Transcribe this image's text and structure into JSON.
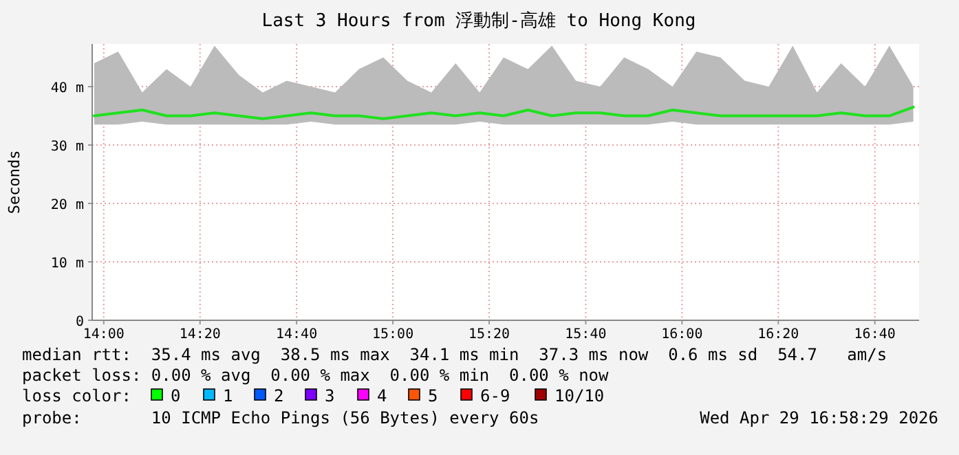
{
  "chart_data": {
    "type": "line",
    "title": "Last 3 Hours from 浮動制-高雄 to Hong Kong",
    "ylabel": "Seconds",
    "x": [
      13.967,
      14.05,
      14.133,
      14.217,
      14.3,
      14.383,
      14.467,
      14.55,
      14.633,
      14.717,
      14.8,
      14.883,
      14.967,
      15.05,
      15.133,
      15.217,
      15.3,
      15.383,
      15.467,
      15.55,
      15.633,
      15.717,
      15.8,
      15.883,
      15.967,
      16.05,
      16.133,
      16.217,
      16.3,
      16.383,
      16.467,
      16.55,
      16.633,
      16.717,
      16.8
    ],
    "series": [
      {
        "color": "#20e020",
        "values": [
          35,
          35.5,
          36,
          35,
          35,
          35.5,
          35,
          34.5,
          35,
          35.5,
          35,
          35,
          34.5,
          35,
          35.5,
          35,
          35.5,
          35,
          36,
          35,
          35.5,
          35.5,
          35,
          35,
          36,
          35.5,
          35,
          35,
          35,
          35,
          35,
          35.5,
          35,
          35,
          36.5
        ],
        "lower": [
          33.5,
          33.5,
          34,
          33.5,
          33.5,
          33.5,
          33.5,
          33.5,
          33.5,
          34,
          33.5,
          33.5,
          33.5,
          33.5,
          33.5,
          33.5,
          34,
          33.5,
          33.5,
          33.5,
          33.5,
          33.5,
          33.5,
          33.5,
          34,
          33.5,
          33.5,
          33.5,
          33.5,
          33.5,
          33.5,
          33.5,
          33.5,
          33.5,
          34
        ],
        "upper": [
          44,
          46,
          39,
          43,
          40,
          47,
          42,
          39,
          41,
          40,
          39,
          43,
          45,
          41,
          39,
          44,
          39,
          45,
          43,
          47,
          41,
          40,
          45,
          43,
          40,
          46,
          45,
          41,
          40,
          47,
          39,
          44,
          40,
          47,
          40
        ]
      }
    ],
    "xlim": [
      13.96,
      16.82
    ],
    "ylim": [
      0,
      47.3
    ],
    "xticks": [
      {
        "value": 14,
        "label": "14:00"
      },
      {
        "value": 14.333,
        "label": "14:20"
      },
      {
        "value": 14.667,
        "label": "14:40"
      },
      {
        "value": 15,
        "label": "15:00"
      },
      {
        "value": 15.333,
        "label": "15:20"
      },
      {
        "value": 15.667,
        "label": "15:40"
      },
      {
        "value": 16,
        "label": "16:00"
      },
      {
        "value": 16.333,
        "label": "16:20"
      },
      {
        "value": 16.667,
        "label": "16:40"
      }
    ],
    "yticks": [
      0,
      {
        "value": 10,
        "label": "10 m"
      },
      {
        "value": 20,
        "label": "20 m"
      },
      {
        "value": 30,
        "label": "30 m"
      },
      {
        "value": 40,
        "label": "40 m"
      }
    ],
    "grid": true,
    "line_style": "solid",
    "marker": "none",
    "annotations": [
      "median rtt:  35.4 ms avg  38.5 ms max  34.1 ms min  37.3 ms now  0.6 ms sd  54.7   am/s",
      "packet loss: 0.00 % avg  0.00 % max  0.00 % min  0.00 % now",
      "loss color:",
      "0",
      "1",
      "2",
      "3",
      "4",
      "5",
      "6-9",
      "10/10",
      "probe:       10 ICMP Echo Pings (56 Bytes) every 60s",
      "Wed Apr 29 16:58:29 2026"
    ]
  }
}
